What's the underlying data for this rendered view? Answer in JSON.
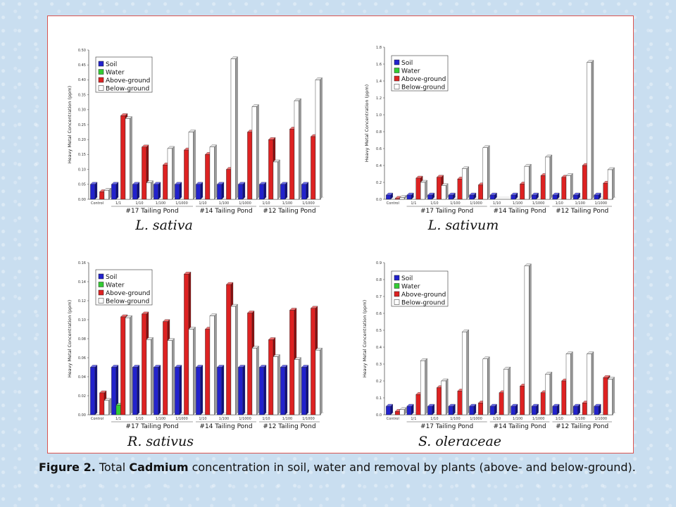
{
  "caption": {
    "label": "Figure 2.",
    "pre": " Total ",
    "bold": "Cadmium",
    "post": " concentration in soil, water and removal by plants (above- and below-ground)."
  },
  "legend_colors": {
    "Soil": "#2222cc",
    "Water": "#33cc33",
    "Above-ground": "#dd2222",
    "Below-ground": "#ffffff"
  },
  "chart_data": [
    {
      "type": "bar",
      "species": "L. sativa",
      "ylabel": "Heavy Metal Concentration (ppm)",
      "ylim": [
        0,
        0.5
      ],
      "yticks": [
        "0.00",
        "0.05",
        "0.10",
        "0.15",
        "0.20",
        "0.25",
        "0.30",
        "0.35",
        "0.40",
        "0.45",
        "0.50"
      ],
      "categories": [
        "Control",
        "1/1",
        "1/10",
        "1/100",
        "1/1000",
        "1/10",
        "1/100",
        "1/1000",
        "1/10",
        "1/100",
        "1/1000"
      ],
      "groups": [
        "#17 Tailing Pond",
        "#14 Tailing Pond",
        "#12 Tailing Pond"
      ],
      "legend": "top-left",
      "series": [
        {
          "name": "Soil",
          "values": [
            0.05,
            0.05,
            0.05,
            0.05,
            0.05,
            0.05,
            0.05,
            0.05,
            0.05,
            0.05,
            0.05
          ]
        },
        {
          "name": "Water",
          "values": [
            0,
            0,
            0,
            0,
            0,
            0,
            0,
            0,
            0,
            0,
            0
          ]
        },
        {
          "name": "Above-ground",
          "values": [
            0.025,
            0.28,
            0.175,
            0.115,
            0.165,
            0.15,
            0.1,
            0.225,
            0.2,
            0.235,
            0.21
          ]
        },
        {
          "name": "Below-ground",
          "values": [
            0.03,
            0.27,
            0.055,
            0.17,
            0.225,
            0.175,
            0.47,
            0.31,
            0.125,
            0.33,
            0.4
          ]
        }
      ]
    },
    {
      "type": "bar",
      "species": "L. sativum",
      "ylabel": "Heavy Metal Concentration (ppm)",
      "ylim": [
        0,
        1.8
      ],
      "yticks": [
        "0.0",
        "0.2",
        "0.4",
        "0.6",
        "0.8",
        "1.0",
        "1.2",
        "1.4",
        "1.6",
        "1.8"
      ],
      "categories": [
        "Control",
        "1/1",
        "1/10",
        "1/100",
        "1/1000",
        "1/10",
        "1/100",
        "1/1000",
        "1/10",
        "1/100",
        "1/1000"
      ],
      "groups": [
        "#17 Tailing Pond",
        "#14 Tailing Pond",
        "#12 Tailing Pond"
      ],
      "legend": "top-left",
      "series": [
        {
          "name": "Soil",
          "values": [
            0.05,
            0.05,
            0.05,
            0.05,
            0.05,
            0.05,
            0.05,
            0.05,
            0.05,
            0.05,
            0.05
          ]
        },
        {
          "name": "Water",
          "values": [
            0,
            0,
            0,
            0,
            0,
            0,
            0,
            0,
            0,
            0,
            0
          ]
        },
        {
          "name": "Above-ground",
          "values": [
            0.01,
            0.25,
            0.26,
            0.24,
            0.17,
            0,
            0.18,
            0.28,
            0.26,
            0.4,
            0.19
          ]
        },
        {
          "name": "Below-ground",
          "values": [
            0.02,
            0.2,
            0.16,
            0.36,
            0.61,
            0,
            0.39,
            0.5,
            0.28,
            1.62,
            0.35
          ]
        }
      ]
    },
    {
      "type": "bar",
      "species": "R. sativus",
      "ylabel": "Heavy Metal Concentration (ppm)",
      "ylim": [
        0,
        0.16
      ],
      "yticks": [
        "0.00",
        "0.02",
        "0.04",
        "0.06",
        "0.08",
        "0.10",
        "0.12",
        "0.14",
        "0.16"
      ],
      "categories": [
        "Control",
        "1/1",
        "1/10",
        "1/100",
        "1/1000",
        "1/10",
        "1/100",
        "1/1000",
        "1/10",
        "1/100",
        "1/1000"
      ],
      "groups": [
        "#17 Tailing Pond",
        "#14 Tailing Pond",
        "#12 Tailing Pond"
      ],
      "legend": "top-left",
      "series": [
        {
          "name": "Soil",
          "values": [
            0.05,
            0.05,
            0.05,
            0.05,
            0.05,
            0.05,
            0.05,
            0.05,
            0.05,
            0.05,
            0.05
          ]
        },
        {
          "name": "Water",
          "values": [
            0,
            0.01,
            0,
            0,
            0,
            0,
            0,
            0,
            0,
            0,
            0
          ]
        },
        {
          "name": "Above-ground",
          "values": [
            0.023,
            0.103,
            0.106,
            0.098,
            0.148,
            0.09,
            0.137,
            0.107,
            0.079,
            0.11,
            0.112
          ]
        },
        {
          "name": "Below-ground",
          "values": [
            0.015,
            0.102,
            0.079,
            0.078,
            0.09,
            0.104,
            0.114,
            0.07,
            0.061,
            0.058,
            0.068
          ]
        }
      ]
    },
    {
      "type": "bar",
      "species": "S. oleraceae",
      "ylabel": "Heavy Metal Concentration (ppm)",
      "ylim": [
        0,
        0.9
      ],
      "yticks": [
        "0.0",
        "0.1",
        "0.2",
        "0.3",
        "0.4",
        "0.5",
        "0.6",
        "0.7",
        "0.8",
        "0.9"
      ],
      "categories": [
        "Control",
        "1/1",
        "1/10",
        "1/100",
        "1/1000",
        "1/10",
        "1/100",
        "1/1000",
        "1/10",
        "1/100",
        "1/1000"
      ],
      "groups": [
        "#17 Tailing Pond",
        "#14 Tailing Pond",
        "#12 Tailing Pond"
      ],
      "legend": "top-left",
      "series": [
        {
          "name": "Soil",
          "values": [
            0.05,
            0.05,
            0.05,
            0.05,
            0.05,
            0.05,
            0.05,
            0.05,
            0.05,
            0.05,
            0.05
          ]
        },
        {
          "name": "Water",
          "values": [
            0,
            0,
            0,
            0,
            0,
            0,
            0,
            0,
            0,
            0,
            0
          ]
        },
        {
          "name": "Above-ground",
          "values": [
            0.02,
            0.12,
            0.16,
            0.14,
            0.07,
            0.13,
            0.17,
            0.13,
            0.2,
            0.07,
            0.22
          ]
        },
        {
          "name": "Below-ground",
          "values": [
            0.03,
            0.32,
            0.2,
            0.49,
            0.33,
            0.27,
            0.88,
            0.24,
            0.36,
            0.36,
            0.21
          ]
        }
      ]
    }
  ]
}
